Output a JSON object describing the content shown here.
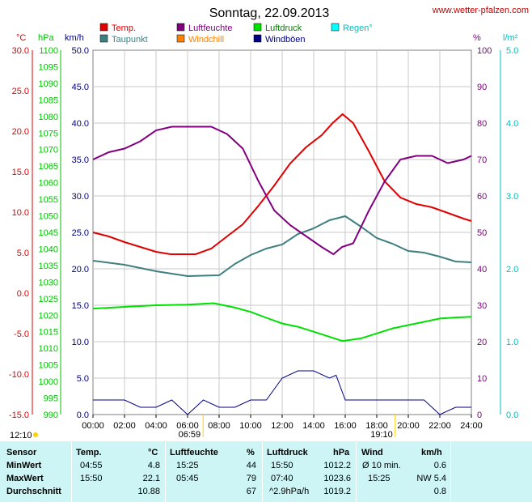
{
  "title": "Sonntag, 22.09.2013",
  "site": "www.wetter-pfalzen.com",
  "units": {
    "temp": "°C",
    "pressure": "hPa",
    "wind": "km/h",
    "humidity": "%",
    "rain": "l/m²"
  },
  "legend": [
    {
      "label": "Temp.",
      "color": "#e00000"
    },
    {
      "label": "Taupunkt",
      "color": "#3f7f7f"
    },
    {
      "label": "Luftfeuchte",
      "color": "#800080"
    },
    {
      "label": "Windchill",
      "color": "#ff8000"
    },
    {
      "label": "Luftdruck",
      "color": "#00e000"
    },
    {
      "label": "Windböen",
      "color": "#000080"
    },
    {
      "label": "Regen°",
      "color": "#00ffff"
    }
  ],
  "axes": {
    "temp_ticks": [
      "30.0",
      "25.0",
      "20.0",
      "15.0",
      "10.0",
      "5.0",
      "0.0",
      "-5.0",
      "-10.0",
      "-15.0"
    ],
    "pressure_ticks": [
      "1100",
      "1095",
      "1090",
      "1085",
      "1080",
      "1075",
      "1070",
      "1065",
      "1060",
      "1055",
      "1050",
      "1045",
      "1040",
      "1035",
      "1030",
      "1025",
      "1020",
      "1015",
      "1010",
      "1005",
      "1000",
      "995",
      "990"
    ],
    "wind_ticks": [
      "50.0",
      "45.0",
      "40.0",
      "35.0",
      "30.0",
      "25.0",
      "20.0",
      "15.0",
      "10.0",
      "5.0",
      "0.0"
    ],
    "hum_ticks": [
      "100",
      "90",
      "80",
      "70",
      "60",
      "50",
      "40",
      "30",
      "20",
      "10",
      "0"
    ],
    "rain_ticks": [
      "5.0",
      "4.0",
      "3.0",
      "2.0",
      "1.0",
      "0.0"
    ],
    "x_ticks": [
      "00:00",
      "02:00",
      "04:00",
      "06:00",
      "08:00",
      "10:00",
      "12:00",
      "14:00",
      "16:00",
      "18:00",
      "20:00",
      "22:00",
      "24:00"
    ],
    "sunrise": "06:59",
    "sunset": "19:10",
    "moon_left": "12:10"
  },
  "chart_data": {
    "type": "line",
    "xlabel": "",
    "xlim": [
      0,
      24
    ],
    "series": [
      {
        "name": "Temp.",
        "axis": "°C",
        "ylim": [
          -15,
          30
        ],
        "x": [
          0,
          1,
          2,
          3,
          4,
          4.92,
          5.5,
          6.5,
          7.5,
          8.5,
          9.5,
          10.5,
          11.5,
          12.5,
          13.5,
          14.5,
          15.2,
          15.83,
          16.5,
          17.5,
          18.5,
          19.5,
          20.5,
          21.5,
          22.5,
          23.5,
          24
        ],
        "y": [
          7.5,
          7.0,
          6.3,
          5.7,
          5.1,
          4.8,
          4.8,
          4.8,
          5.5,
          7.0,
          8.5,
          10.8,
          13.3,
          16.0,
          18.0,
          19.5,
          21.0,
          22.1,
          21.0,
          17.5,
          13.8,
          11.8,
          11.0,
          10.6,
          9.9,
          9.2,
          8.9
        ]
      },
      {
        "name": "Taupunkt",
        "axis": "°C",
        "ylim": [
          -15,
          30
        ],
        "x": [
          0,
          2,
          4,
          6,
          8,
          9,
          10,
          11,
          12,
          13,
          14,
          15,
          16,
          17,
          18,
          19,
          20,
          21,
          22,
          23,
          24
        ],
        "y": [
          4.0,
          3.5,
          2.7,
          2.1,
          2.2,
          3.6,
          4.7,
          5.5,
          6.0,
          7.3,
          8.0,
          9.0,
          9.5,
          8.2,
          6.8,
          6.1,
          5.2,
          5.0,
          4.5,
          3.9,
          3.8
        ]
      },
      {
        "name": "Luftfeuchte",
        "axis": "%",
        "ylim": [
          0,
          100
        ],
        "x": [
          0,
          1,
          2,
          3,
          4,
          5,
          5.75,
          6.5,
          7.5,
          8.5,
          9.5,
          10.5,
          11.5,
          12.5,
          13.5,
          14.5,
          15.25,
          15.8,
          16.5,
          17.5,
          18.5,
          19.5,
          20.5,
          21.5,
          22.5,
          23.5,
          24
        ],
        "y": [
          70,
          72,
          73,
          75,
          78,
          79,
          79,
          79,
          79,
          77,
          73,
          64,
          56,
          52,
          49,
          46,
          44,
          46,
          47,
          56,
          64,
          70,
          71,
          71,
          69,
          70,
          71
        ]
      },
      {
        "name": "Luftdruck",
        "axis": "hPa",
        "ylim": [
          990,
          1100
        ],
        "x": [
          0,
          2,
          4,
          6,
          7.67,
          9,
          10,
          11,
          12,
          13,
          14,
          15,
          15.83,
          17,
          18,
          19,
          20,
          21,
          22,
          23,
          24
        ],
        "y": [
          1022,
          1022.5,
          1023,
          1023.2,
          1023.6,
          1022.3,
          1021,
          1019.2,
          1017.5,
          1016.5,
          1015,
          1013.5,
          1012.2,
          1013,
          1014.5,
          1016,
          1017,
          1018,
          1019,
          1019.3,
          1019.5
        ]
      },
      {
        "name": "Windböen",
        "axis": "km/h",
        "ylim": [
          0,
          50
        ],
        "x": [
          0,
          1,
          2,
          3,
          4,
          5,
          6,
          7,
          8,
          9,
          10,
          11,
          12,
          13,
          14,
          15,
          15.42,
          16,
          17,
          18,
          19,
          20,
          21,
          22,
          23,
          24
        ],
        "y": [
          2,
          2,
          2,
          1,
          1,
          2,
          0,
          2,
          1,
          1,
          2,
          2,
          5,
          6,
          6,
          5,
          5.4,
          2,
          2,
          2,
          2,
          2,
          2,
          0,
          1,
          1
        ]
      }
    ]
  },
  "table": {
    "headers": {
      "sensor": "Sensor",
      "temp": "Temp.",
      "temp_unit": "°C",
      "hum": "Luftfeuchte",
      "hum_unit": "%",
      "press": "Luftdruck",
      "press_unit": "hPa",
      "wind": "Wind",
      "wind_unit": "km/h"
    },
    "rows": [
      {
        "label": "MinWert",
        "temp_time": "04:55",
        "temp": "4.8",
        "hum_time": "15:25",
        "hum": "44",
        "press_time": "15:50",
        "press": "1012.2",
        "wind_time": "Ø 10 min.",
        "wind": "0.6"
      },
      {
        "label": "MaxWert",
        "temp_time": "15:50",
        "temp": "22.1",
        "hum_time": "05:45",
        "hum": "79",
        "press_time": "07:40",
        "press": "1023.6",
        "wind_time": "15:25",
        "wind": "NW 5.4"
      },
      {
        "label": "Durchschnitt",
        "temp_time": "",
        "temp": "10.88",
        "hum_time": "",
        "hum": "67",
        "press_time": "^2.9hPa/h",
        "press": "1019.2",
        "wind_time": "",
        "wind": "0.8"
      }
    ]
  }
}
